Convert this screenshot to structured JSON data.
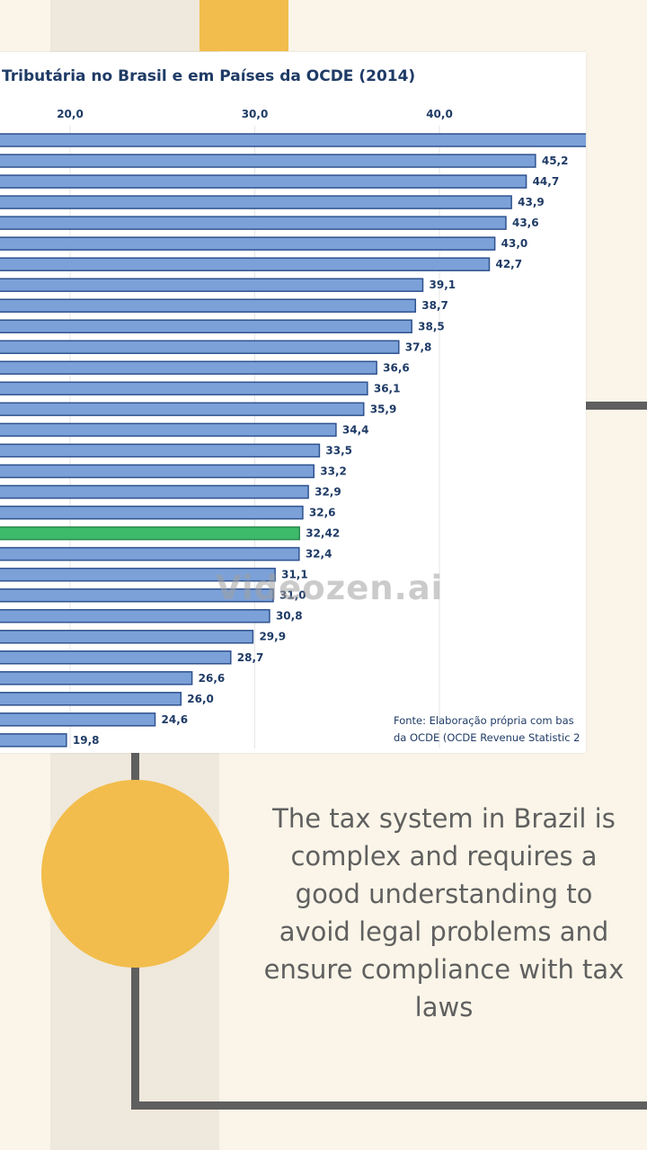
{
  "chart_data": {
    "type": "bar",
    "orientation": "horizontal",
    "title": "Tributária no Brasil e em Países da OCDE (2014)",
    "x_ticks": [
      "20,0",
      "30,0",
      "40,0"
    ],
    "x_tick_values": [
      20,
      30,
      40
    ],
    "xlim_visible": [
      16.2,
      47.9
    ],
    "grid": true,
    "values": [
      48.0,
      45.2,
      44.7,
      43.9,
      43.6,
      43.0,
      42.7,
      39.1,
      38.7,
      38.5,
      37.8,
      36.6,
      36.1,
      35.9,
      34.4,
      33.5,
      33.2,
      32.9,
      32.6,
      32.42,
      32.4,
      31.1,
      31.0,
      30.8,
      29.9,
      28.7,
      26.6,
      26.0,
      24.6,
      19.8
    ],
    "value_labels": [
      "",
      "45,2",
      "44,7",
      "43,9",
      "43,6",
      "43,0",
      "42,7",
      "39,1",
      "38,7",
      "38,5",
      "37,8",
      "36,6",
      "36,1",
      "35,9",
      "34,4",
      "33,5",
      "33,2",
      "32,9",
      "32,6",
      "32,42",
      "32,4",
      "31,1",
      "31,0",
      "30,8",
      "29,9",
      "28,7",
      "26,6",
      "26,0",
      "24,6",
      "19,8"
    ],
    "highlight_index": 19,
    "colors": {
      "bar": "#7ba1d8",
      "bar_edge": "#2f528f",
      "highlight": "#3dba6a",
      "highlight_edge": "#2d8a50",
      "text": "#1f3b66"
    },
    "source_lines": [
      "Fonte:  Elaboração própria com bas",
      "da OCDE (OCDE Revenue Statistic 2"
    ]
  },
  "watermark": "Videozen.ai",
  "caption": "The tax system in Brazil is complex and requires a good understanding to avoid legal problems and ensure compliance with tax laws"
}
